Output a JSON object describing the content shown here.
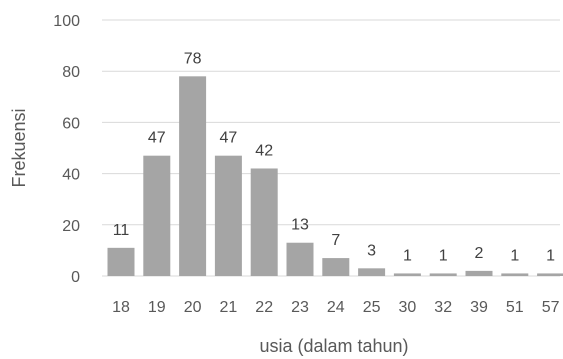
{
  "chart_data": {
    "type": "bar",
    "categories": [
      "18",
      "19",
      "20",
      "21",
      "22",
      "23",
      "24",
      "25",
      "30",
      "32",
      "39",
      "51",
      "57"
    ],
    "values": [
      11,
      47,
      78,
      47,
      42,
      13,
      7,
      3,
      1,
      1,
      2,
      1,
      1
    ],
    "data_labels": [
      "11",
      "47",
      "78",
      "47",
      "42",
      "13",
      "7",
      "3",
      "1",
      "1",
      "2",
      "1",
      "1"
    ],
    "xlabel": "usia (dalam tahun)",
    "ylabel": "Frekuensi",
    "ylim": [
      0,
      100
    ],
    "yticks": [
      "0",
      "20",
      "40",
      "60",
      "80",
      "100"
    ],
    "grid": true,
    "bar_color": "#a5a5a5",
    "grid_color": "#d9d9d9"
  }
}
